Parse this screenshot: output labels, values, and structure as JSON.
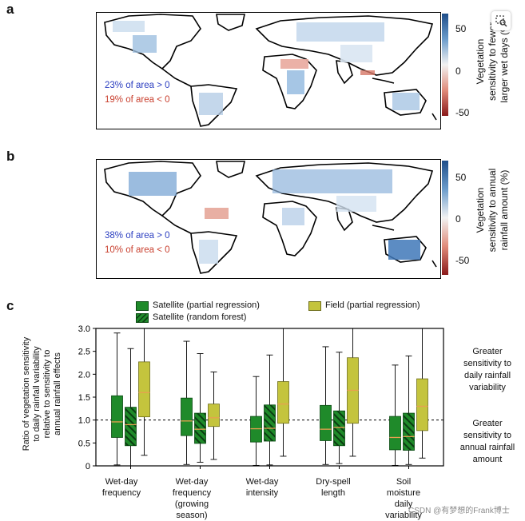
{
  "panels": {
    "a": {
      "letter": "a",
      "stat_pos": "23% of area > 0",
      "stat_neg": "19% of area < 0",
      "colorbar_title": [
        "Vegetation",
        "sensitivity to fewer",
        "larger wet days (%)"
      ],
      "colorbar_ticks": [
        "50",
        "0",
        "-50"
      ]
    },
    "b": {
      "letter": "b",
      "stat_pos": "38% of area > 0",
      "stat_neg": "10% of area < 0",
      "colorbar_title": [
        "Vegetation",
        "sensitivity to annual",
        "rainfall amount (%)"
      ],
      "colorbar_ticks": [
        "50",
        "0",
        "-50"
      ]
    },
    "c": {
      "letter": "c"
    }
  },
  "colors": {
    "positive": "#2b6bb0",
    "negative": "#c9402f",
    "satellite_partial": "#1f8a2a",
    "satellite_rf": "#1f8a2a",
    "field": "#c4c43d",
    "median": "#e8a050"
  },
  "chart_data": {
    "type": "box",
    "ylabel": [
      "Ratio of vegetation sensitivity",
      "to daily rainfall variability",
      "relative to sensitivity to",
      "annual rainfall effects"
    ],
    "ylim": [
      0,
      3.0
    ],
    "yticks": [
      "0",
      "0.5",
      "1.0",
      "1.5",
      "2.0",
      "2.5",
      "3.0"
    ],
    "reference_line": 1.0,
    "legend": [
      "Satellite (partial regression)",
      "Satellite (random forest)",
      "Field (partial regression)"
    ],
    "categories": [
      [
        "Wet-day",
        "frequency"
      ],
      [
        "Wet-day",
        "frequency",
        "(growing",
        "season)"
      ],
      [
        "Wet-day",
        "intensity"
      ],
      [
        "Dry-spell",
        "length"
      ],
      [
        "Soil",
        "moisture",
        "daily",
        "variability"
      ]
    ],
    "series": [
      {
        "name": "Satellite (partial regression)",
        "boxes": [
          {
            "whislo": 0.02,
            "q1": 0.62,
            "med": 0.96,
            "q3": 1.53,
            "whishi": 2.9
          },
          {
            "whislo": 0.03,
            "q1": 0.66,
            "med": 0.98,
            "q3": 1.48,
            "whishi": 2.72
          },
          {
            "whislo": 0.01,
            "q1": 0.52,
            "med": 0.81,
            "q3": 1.08,
            "whishi": 1.95
          },
          {
            "whislo": 0.03,
            "q1": 0.55,
            "med": 0.8,
            "q3": 1.32,
            "whishi": 2.6
          },
          {
            "whislo": 0.01,
            "q1": 0.35,
            "med": 0.62,
            "q3": 1.08,
            "whishi": 2.2
          }
        ]
      },
      {
        "name": "Satellite (random forest)",
        "boxes": [
          {
            "whislo": 0.0,
            "q1": 0.44,
            "med": 0.9,
            "q3": 1.28,
            "whishi": 2.56
          },
          {
            "whislo": 0.08,
            "q1": 0.49,
            "med": 0.8,
            "q3": 1.15,
            "whishi": 2.45
          },
          {
            "whislo": 0.02,
            "q1": 0.54,
            "med": 0.82,
            "q3": 1.33,
            "whishi": 2.42
          },
          {
            "whislo": 0.05,
            "q1": 0.44,
            "med": 0.84,
            "q3": 1.2,
            "whishi": 2.48
          },
          {
            "whislo": 0.03,
            "q1": 0.34,
            "med": 0.64,
            "q3": 1.15,
            "whishi": 2.4
          }
        ]
      },
      {
        "name": "Field (partial regression)",
        "boxes": [
          {
            "whislo": 0.23,
            "q1": 1.07,
            "med": 1.6,
            "q3": 2.27,
            "whishi": 3.0
          },
          {
            "whislo": 0.14,
            "q1": 0.86,
            "med": 1.05,
            "q3": 1.35,
            "whishi": 2.05
          },
          {
            "whislo": 0.21,
            "q1": 0.93,
            "med": 1.35,
            "q3": 1.84,
            "whishi": 3.0
          },
          {
            "whislo": 0.21,
            "q1": 0.93,
            "med": 1.65,
            "q3": 2.36,
            "whishi": 3.0
          },
          {
            "whislo": 0.17,
            "q1": 0.77,
            "med": 1.3,
            "q3": 1.9,
            "whishi": 3.0
          }
        ]
      }
    ],
    "side_notes": {
      "top": [
        "Greater",
        "sensitivity to",
        "daily rainfall",
        "variability"
      ],
      "bottom": [
        "Greater",
        "sensitivity to",
        "annual rainfall",
        "amount"
      ]
    }
  },
  "watermark": "CSDN @有梦想的Frank博士",
  "toolbar": {
    "icon": "image-search-icon"
  }
}
